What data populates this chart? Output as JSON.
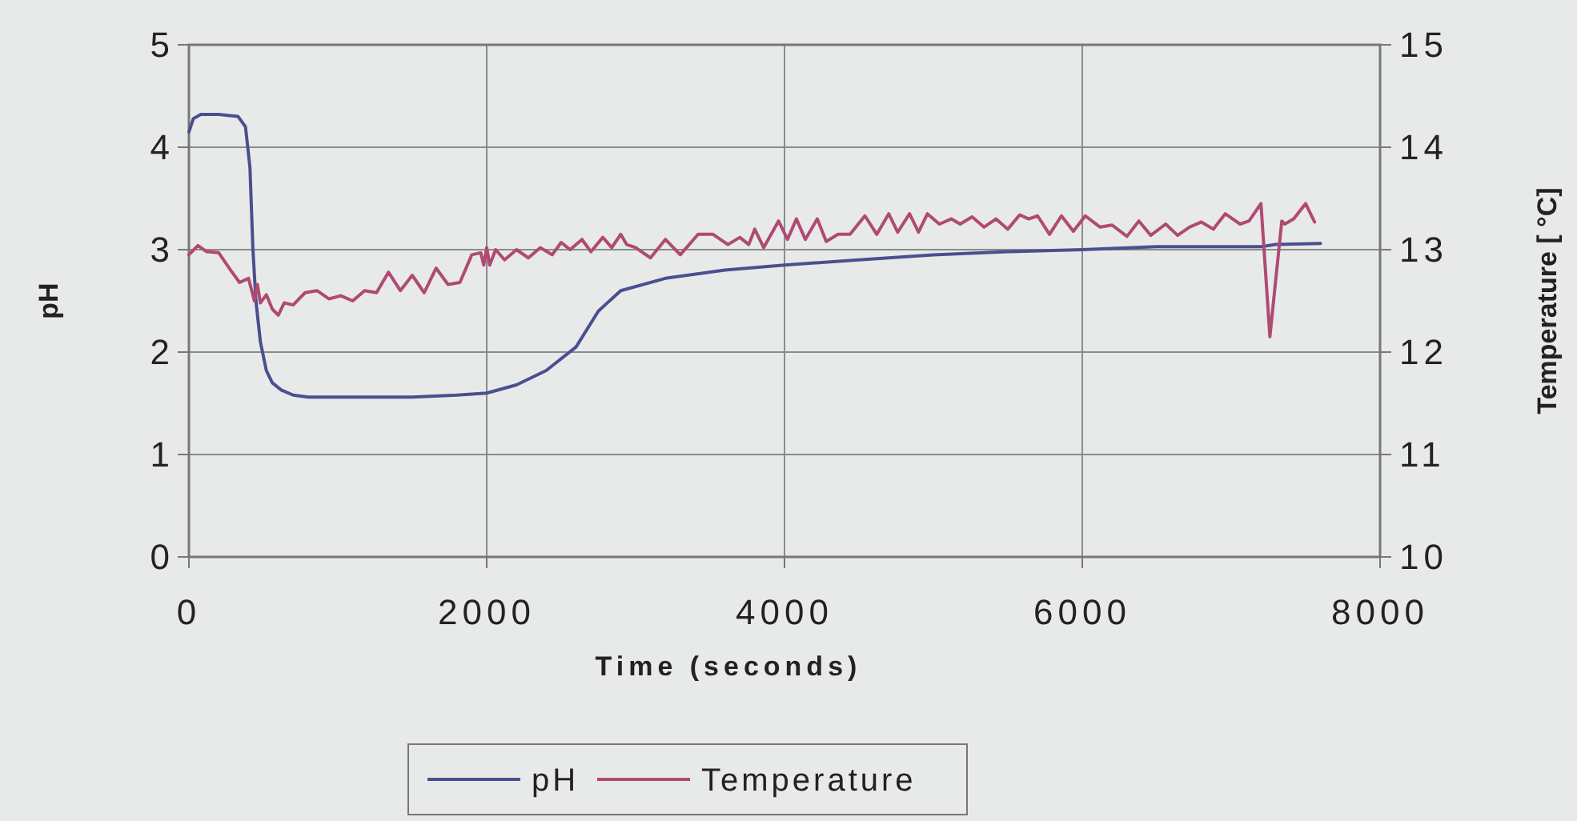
{
  "chart_data": {
    "type": "line",
    "xlabel": "Time (seconds)",
    "ylabel": "pH",
    "y2label": "Temperature [ °C]",
    "xlim": [
      0,
      8000
    ],
    "xticks": [
      0,
      2000,
      4000,
      6000,
      8000
    ],
    "ylim": [
      0,
      5
    ],
    "yticks": [
      0,
      1,
      2,
      3,
      4,
      5
    ],
    "y2lim": [
      10,
      15
    ],
    "y2ticks": [
      10,
      11,
      12,
      13,
      14,
      15
    ],
    "grid": true,
    "legend": "bottom",
    "line_style": "solid",
    "series": [
      {
        "name": "pH",
        "color": "#4a4f8f",
        "x": [
          0,
          30,
          80,
          200,
          330,
          380,
          410,
          430,
          450,
          480,
          520,
          560,
          620,
          700,
          800,
          1000,
          1500,
          1800,
          2000,
          2200,
          2400,
          2600,
          2750,
          2900,
          3200,
          3600,
          4000,
          4500,
          5000,
          5500,
          6000,
          6500,
          7200,
          7300,
          7600
        ],
        "values": [
          4.15,
          4.28,
          4.32,
          4.32,
          4.3,
          4.2,
          3.8,
          3.0,
          2.5,
          2.1,
          1.82,
          1.7,
          1.63,
          1.58,
          1.56,
          1.56,
          1.56,
          1.58,
          1.6,
          1.68,
          1.82,
          2.05,
          2.4,
          2.6,
          2.72,
          2.8,
          2.85,
          2.9,
          2.95,
          2.98,
          3.0,
          3.03,
          3.03,
          3.05,
          3.06
        ]
      },
      {
        "name": "Temperature",
        "color": "#b04a72",
        "axis": "y2",
        "x": [
          0,
          60,
          120,
          200,
          280,
          340,
          400,
          440,
          460,
          480,
          520,
          560,
          600,
          640,
          700,
          780,
          860,
          940,
          1020,
          1100,
          1180,
          1260,
          1340,
          1420,
          1500,
          1580,
          1660,
          1740,
          1820,
          1900,
          1960,
          1980,
          2000,
          2020,
          2060,
          2120,
          2200,
          2280,
          2360,
          2440,
          2500,
          2560,
          2640,
          2700,
          2780,
          2840,
          2900,
          2940,
          3000,
          3100,
          3200,
          3300,
          3420,
          3520,
          3620,
          3700,
          3760,
          3800,
          3860,
          3960,
          4020,
          4080,
          4140,
          4220,
          4280,
          4360,
          4440,
          4540,
          4620,
          4700,
          4760,
          4840,
          4900,
          4960,
          5040,
          5120,
          5180,
          5260,
          5340,
          5420,
          5500,
          5580,
          5640,
          5700,
          5780,
          5860,
          5940,
          6020,
          6120,
          6200,
          6300,
          6380,
          6460,
          6560,
          6640,
          6720,
          6800,
          6880,
          6960,
          7060,
          7120,
          7200,
          7260,
          7340,
          7360,
          7420,
          7500,
          7560
        ],
        "values": [
          12.95,
          13.04,
          12.98,
          12.97,
          12.8,
          12.68,
          12.72,
          12.5,
          12.66,
          12.48,
          12.56,
          12.42,
          12.36,
          12.48,
          12.46,
          12.58,
          12.6,
          12.52,
          12.55,
          12.5,
          12.6,
          12.58,
          12.78,
          12.6,
          12.75,
          12.58,
          12.82,
          12.66,
          12.68,
          12.95,
          12.97,
          12.85,
          13.02,
          12.85,
          13.0,
          12.9,
          13.0,
          12.92,
          13.02,
          12.95,
          13.07,
          13.0,
          13.1,
          12.98,
          13.12,
          13.02,
          13.15,
          13.05,
          13.02,
          12.92,
          13.1,
          12.95,
          13.15,
          13.15,
          13.05,
          13.12,
          13.05,
          13.2,
          13.02,
          13.28,
          13.1,
          13.3,
          13.1,
          13.3,
          13.08,
          13.15,
          13.15,
          13.33,
          13.15,
          13.35,
          13.17,
          13.35,
          13.17,
          13.35,
          13.25,
          13.3,
          13.25,
          13.32,
          13.22,
          13.3,
          13.2,
          13.34,
          13.3,
          13.33,
          13.15,
          13.33,
          13.18,
          13.33,
          13.22,
          13.24,
          13.13,
          13.28,
          13.14,
          13.25,
          13.14,
          13.22,
          13.27,
          13.2,
          13.35,
          13.25,
          13.28,
          13.45,
          12.15,
          13.28,
          13.25,
          13.3,
          13.45,
          13.27
        ]
      }
    ]
  }
}
